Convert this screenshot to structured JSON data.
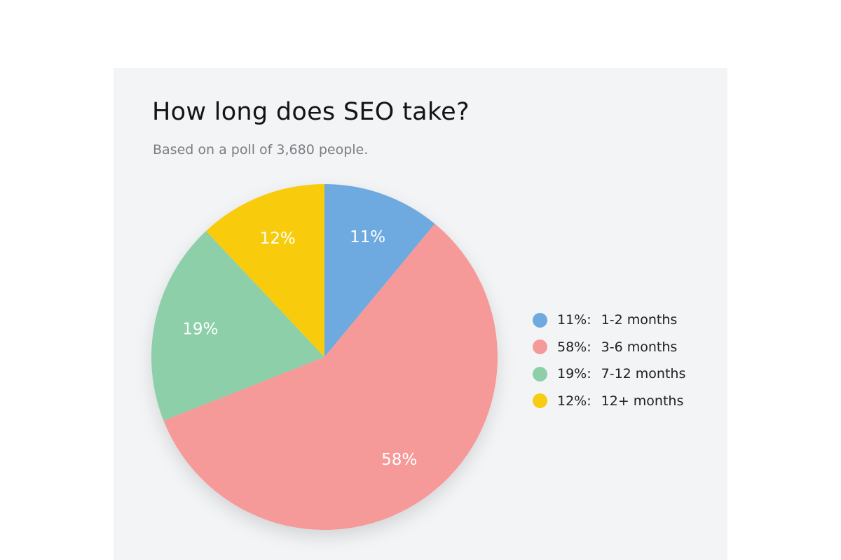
{
  "chart_data": {
    "type": "pie",
    "title": "How long does SEO take?",
    "subtitle": "Based on a poll of 3,680 people.",
    "start_angle_deg": 0,
    "direction": "clockwise",
    "legend_placement": "right",
    "slices": [
      {
        "label": "1-2 months",
        "value": 11,
        "display": "11%",
        "legend_pct": "11%:",
        "color": "#6ea9e0"
      },
      {
        "label": "3-6 months",
        "value": 58,
        "display": "58%",
        "legend_pct": "58%:",
        "color": "#f59a98"
      },
      {
        "label": "7-12 months",
        "value": 19,
        "display": "19%",
        "legend_pct": "19%:",
        "color": "#8dcfa8"
      },
      {
        "label": "12+ months",
        "value": 12,
        "display": "12%",
        "legend_pct": "12%:",
        "color": "#f8cc10"
      }
    ]
  }
}
